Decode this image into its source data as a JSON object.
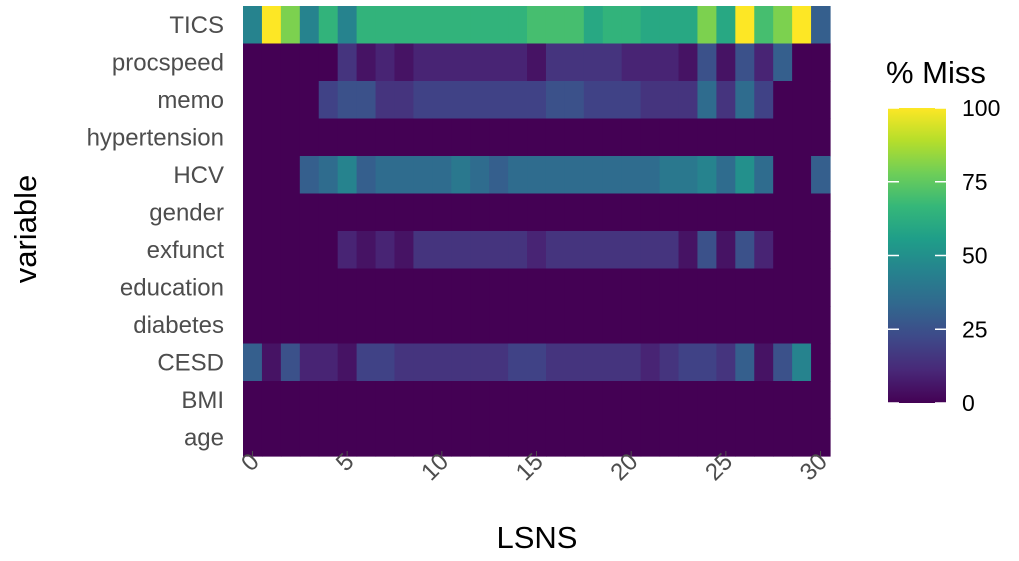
{
  "chart_data": {
    "type": "heatmap",
    "xlabel": "LSNS",
    "ylabel": "variable",
    "xlim": [
      -0.5,
      30.5
    ],
    "x_ticks": [
      "0",
      "5",
      "10",
      "15",
      "20",
      "25",
      "30"
    ],
    "x_tick_values": [
      0,
      5,
      10,
      15,
      20,
      25,
      30
    ],
    "x": [
      0,
      1,
      2,
      3,
      4,
      5,
      6,
      7,
      8,
      9,
      10,
      11,
      12,
      13,
      14,
      15,
      16,
      17,
      18,
      19,
      20,
      21,
      22,
      23,
      24,
      25,
      26,
      27,
      28,
      29,
      30
    ],
    "variables": [
      "TICS",
      "procspeed",
      "memo",
      "hypertension",
      "HCV",
      "gender",
      "exfunct",
      "education",
      "diabetes",
      "CESD",
      "BMI",
      "age"
    ],
    "legend": {
      "title": "% Miss",
      "breaks": [
        "0",
        "25",
        "50",
        "75",
        "100"
      ],
      "break_values": [
        0,
        25,
        50,
        75,
        100
      ],
      "range": [
        0,
        100
      ],
      "position": "right",
      "palette": "viridis"
    },
    "grid": false,
    "values": {
      "TICS": [
        45,
        100,
        80,
        45,
        65,
        45,
        65,
        65,
        65,
        65,
        65,
        65,
        65,
        65,
        65,
        70,
        70,
        70,
        60,
        65,
        65,
        60,
        60,
        60,
        80,
        60,
        100,
        70,
        80,
        100,
        30
      ],
      "procspeed": [
        0,
        0,
        0,
        0,
        0,
        15,
        5,
        10,
        5,
        10,
        10,
        10,
        10,
        10,
        10,
        5,
        15,
        15,
        15,
        15,
        10,
        10,
        10,
        5,
        25,
        5,
        25,
        10,
        30,
        0,
        0
      ],
      "memo": [
        0,
        0,
        0,
        0,
        20,
        25,
        25,
        15,
        15,
        20,
        20,
        20,
        20,
        20,
        20,
        20,
        25,
        25,
        20,
        20,
        20,
        15,
        15,
        15,
        35,
        15,
        35,
        20,
        0,
        0,
        0
      ],
      "hypertension": [
        0,
        0,
        0,
        0,
        0,
        0,
        0,
        0,
        0,
        0,
        0,
        0,
        0,
        0,
        0,
        0,
        0,
        0,
        0,
        0,
        0,
        0,
        0,
        0,
        0,
        0,
        0,
        0,
        0,
        0,
        0
      ],
      "HCV": [
        0,
        0,
        0,
        30,
        35,
        45,
        30,
        35,
        35,
        35,
        35,
        40,
        35,
        30,
        35,
        35,
        35,
        35,
        35,
        35,
        35,
        35,
        40,
        40,
        45,
        35,
        50,
        35,
        0,
        0,
        30
      ],
      "gender": [
        0,
        0,
        0,
        0,
        0,
        0,
        0,
        0,
        0,
        0,
        0,
        0,
        0,
        0,
        0,
        0,
        0,
        0,
        0,
        0,
        0,
        0,
        0,
        0,
        0,
        0,
        0,
        0,
        0,
        0,
        0
      ],
      "exfunct": [
        0,
        0,
        0,
        0,
        0,
        10,
        5,
        10,
        5,
        15,
        15,
        15,
        15,
        15,
        15,
        10,
        15,
        15,
        15,
        15,
        15,
        15,
        15,
        5,
        25,
        5,
        25,
        10,
        0,
        0,
        0
      ],
      "education": [
        0,
        0,
        0,
        0,
        0,
        0,
        0,
        0,
        0,
        0,
        0,
        0,
        0,
        0,
        0,
        0,
        0,
        0,
        0,
        0,
        0,
        0,
        0,
        0,
        0,
        0,
        0,
        0,
        0,
        0,
        0
      ],
      "diabetes": [
        0,
        0,
        0,
        0,
        0,
        0,
        0,
        0,
        0,
        0,
        0,
        0,
        0,
        0,
        0,
        0,
        0,
        0,
        0,
        0,
        0,
        0,
        0,
        0,
        0,
        0,
        0,
        0,
        0,
        0,
        0
      ],
      "CESD": [
        30,
        5,
        25,
        10,
        10,
        5,
        20,
        20,
        15,
        15,
        15,
        15,
        15,
        15,
        20,
        20,
        15,
        15,
        15,
        15,
        15,
        10,
        15,
        20,
        20,
        15,
        30,
        5,
        25,
        45,
        0
      ],
      "BMI": [
        0,
        0,
        0,
        0,
        0,
        0,
        0,
        0,
        0,
        0,
        0,
        0,
        0,
        0,
        0,
        0,
        0,
        0,
        0,
        0,
        0,
        0,
        0,
        0,
        0,
        0,
        0,
        0,
        0,
        0,
        0
      ],
      "age": [
        0,
        0,
        0,
        0,
        0,
        0,
        0,
        0,
        0,
        0,
        0,
        0,
        0,
        0,
        0,
        0,
        0,
        0,
        0,
        0,
        0,
        0,
        0,
        0,
        0,
        0,
        0,
        0,
        0,
        0,
        0
      ]
    }
  }
}
